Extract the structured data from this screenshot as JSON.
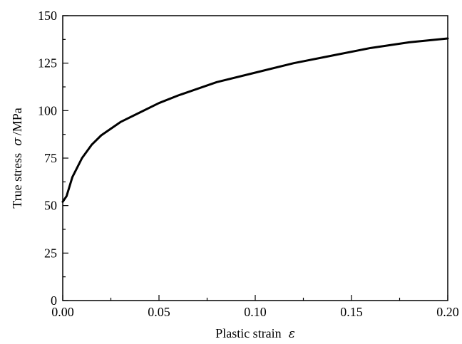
{
  "chart_data": {
    "type": "line",
    "title": "",
    "xlabel": "Plastic strain",
    "xlabel_symbol": "ε",
    "ylabel": "True stress",
    "ylabel_symbol": "σ",
    "ylabel_unit": "/MPa",
    "xlim": [
      0.0,
      0.2
    ],
    "ylim": [
      0,
      150
    ],
    "xticks": [
      "0.00",
      "0.05",
      "0.10",
      "0.15",
      "0.20"
    ],
    "yticks": [
      "0",
      "25",
      "50",
      "75",
      "100",
      "125",
      "150"
    ],
    "grid": false,
    "series": [
      {
        "x": [
          0.0,
          0.002,
          0.005,
          0.01,
          0.015,
          0.02,
          0.03,
          0.04,
          0.05,
          0.06,
          0.08,
          0.1,
          0.12,
          0.14,
          0.16,
          0.18,
          0.2
        ],
        "values": [
          52,
          55,
          65,
          75,
          82,
          87,
          94,
          99,
          104,
          108,
          115,
          120,
          125,
          129,
          133,
          136,
          138
        ]
      }
    ],
    "line_color": "#000000"
  }
}
